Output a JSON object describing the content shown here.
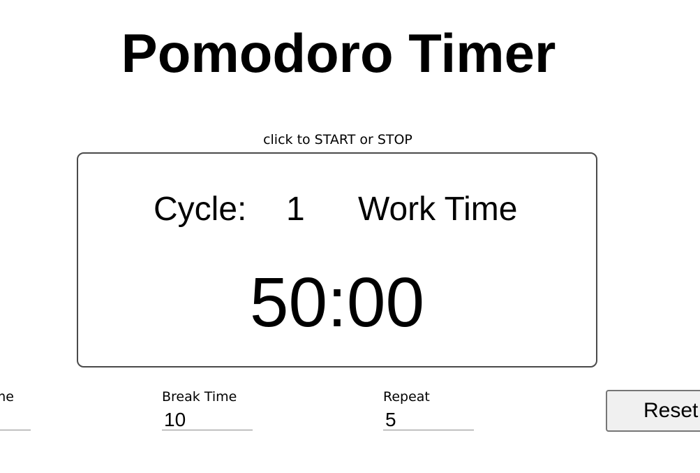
{
  "title": "Pomodoro Timer",
  "hint": "click to START or STOP",
  "timer": {
    "cycle_label": "Cycle:",
    "cycle_number": "1",
    "phase_label": "Work Time",
    "display": "50:00"
  },
  "settings": {
    "work_time": {
      "label": "Work Time",
      "value": ""
    },
    "break_time": {
      "label": "Break Time",
      "value": "10"
    },
    "repeat": {
      "label": "Repeat",
      "value": "5"
    }
  },
  "reset_label": "Reset"
}
